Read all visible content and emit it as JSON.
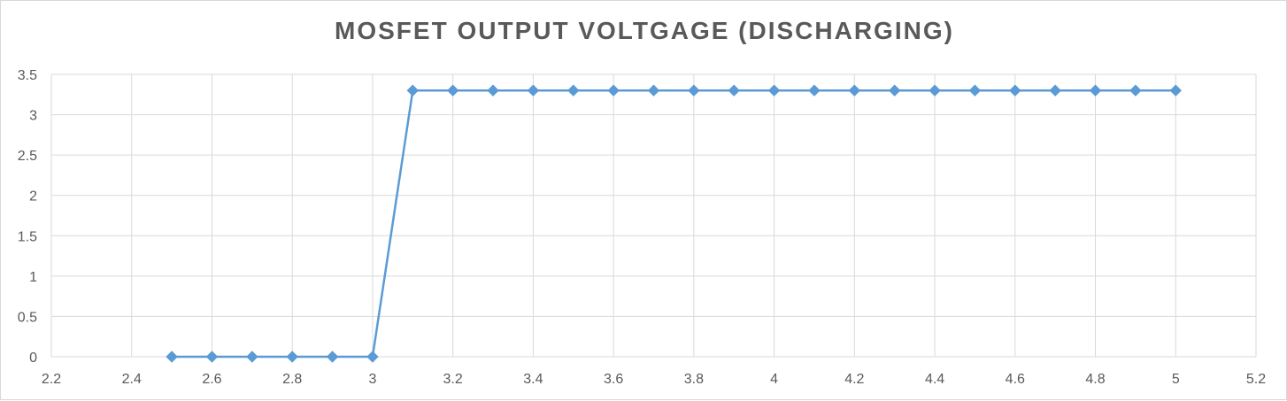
{
  "chart_data": {
    "type": "scatter",
    "title": "MOSFET OUTPUT VOLTGAGE (DISCHARGING)",
    "xlabel": "",
    "ylabel": "",
    "xlim": [
      2.2,
      5.2
    ],
    "ylim": [
      0,
      3.5
    ],
    "x_ticks": [
      "2.2",
      "2.4",
      "2.6",
      "2.8",
      "3",
      "3.2",
      "3.4",
      "3.6",
      "3.8",
      "4",
      "4.2",
      "4.4",
      "4.6",
      "4.8",
      "5",
      "5.2"
    ],
    "y_ticks": [
      "0",
      "0.5",
      "1",
      "1.5",
      "2",
      "2.5",
      "3",
      "3.5"
    ],
    "grid": true,
    "legend": "none",
    "marker": "diamond",
    "line_color": "#5b9bd5",
    "series": [
      {
        "x": [
          2.5,
          2.6,
          2.7,
          2.8,
          2.9,
          3.0,
          3.1,
          3.2,
          3.3,
          3.4,
          3.5,
          3.6,
          3.7,
          3.8,
          3.9,
          4.0,
          4.1,
          4.2,
          4.3,
          4.4,
          4.5,
          4.6,
          4.7,
          4.8,
          4.9,
          5.0
        ],
        "y": [
          0,
          0,
          0,
          0,
          0,
          0,
          3.3,
          3.3,
          3.3,
          3.3,
          3.3,
          3.3,
          3.3,
          3.3,
          3.3,
          3.3,
          3.3,
          3.3,
          3.3,
          3.3,
          3.3,
          3.3,
          3.3,
          3.3,
          3.3,
          3.3
        ]
      }
    ]
  }
}
